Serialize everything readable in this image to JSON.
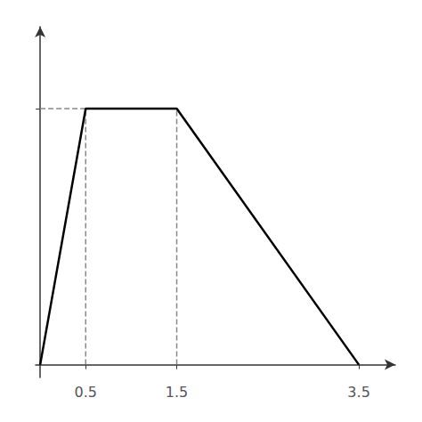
{
  "chart_data": {
    "type": "line",
    "series": [
      {
        "color": "#000000",
        "line_style": "solid",
        "x": [
          0,
          0.5,
          1.5,
          3.5
        ],
        "values": [
          0,
          1,
          1,
          0
        ]
      },
      {
        "color": "#888888",
        "line_style": "dashed",
        "x": [
          0.5,
          0.5
        ],
        "values": [
          0,
          1
        ]
      },
      {
        "color": "#888888",
        "line_style": "dashed",
        "x": [
          1.5,
          1.5
        ],
        "values": [
          0,
          1
        ]
      },
      {
        "color": "#888888",
        "line_style": "dashed",
        "x": [
          0,
          1.5
        ],
        "values": [
          1,
          1
        ]
      }
    ],
    "xlim": [
      -0.05,
      3.9
    ],
    "ylim": [
      -0.05,
      1.32
    ],
    "xticks": [
      0.5,
      1.5,
      3.5
    ],
    "yticks": [
      1
    ],
    "tick_labels": "x",
    "grid": false
  }
}
